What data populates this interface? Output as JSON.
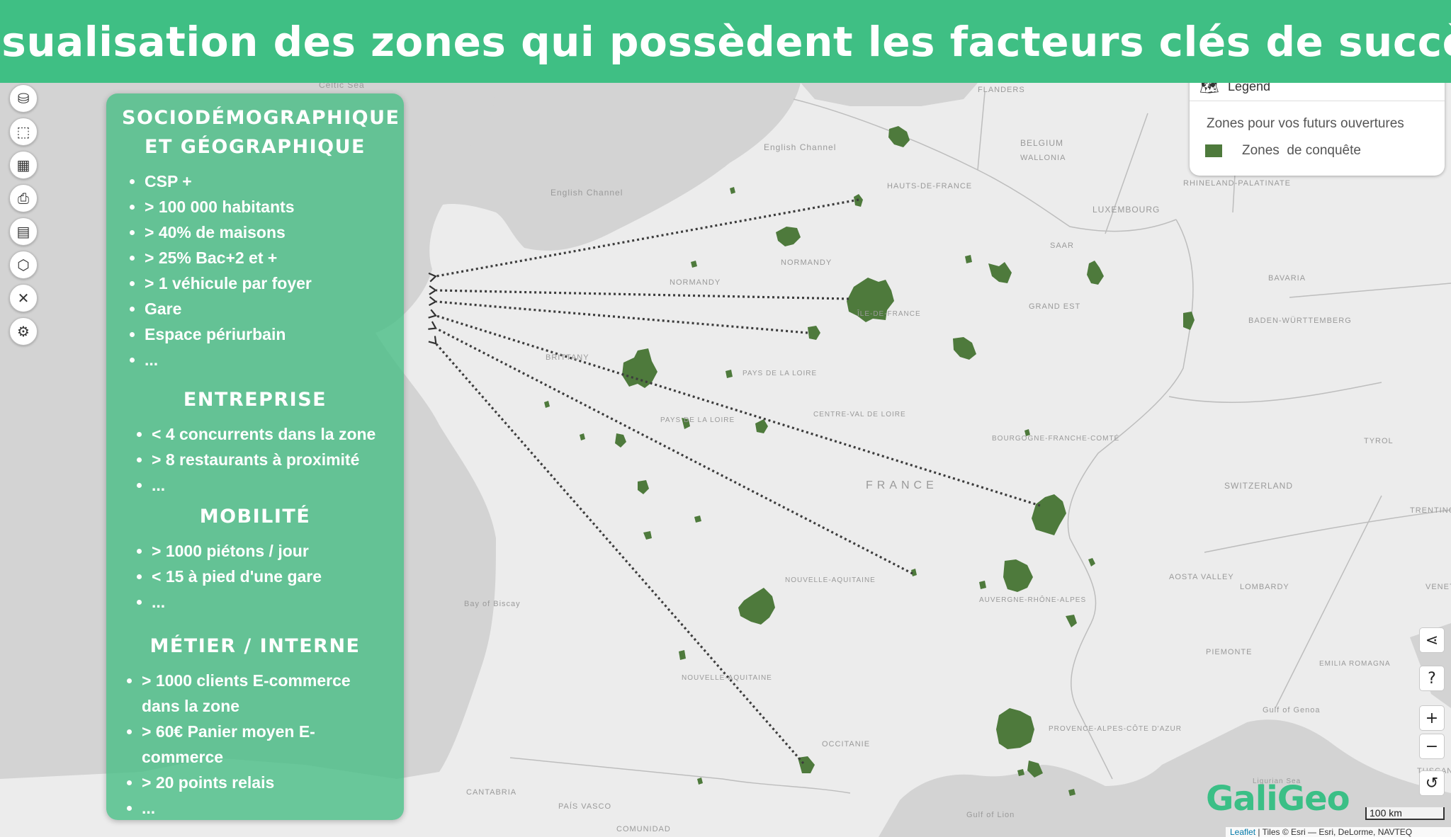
{
  "title": "Visualisation des zones qui possèdent les facteurs clés de succès",
  "toolbar": {
    "tools": [
      {
        "icon": "layers-icon"
      },
      {
        "icon": "database-globe-icon"
      },
      {
        "icon": "select-icon"
      },
      {
        "icon": "map-icon"
      },
      {
        "icon": "print-icon"
      },
      {
        "icon": "film-icon"
      },
      {
        "icon": "hexagons-icon"
      },
      {
        "icon": "tools-icon"
      },
      {
        "icon": "shield-settings-icon"
      }
    ]
  },
  "panel": {
    "sections": [
      {
        "title": "SOCIODÉMOGRAPHIQUE ET GÉOGRAPHIQUE",
        "items": [
          "CSP +",
          "> 100 000 habitants",
          "> 40% de maisons",
          "> 25% Bac+2 et +",
          "> 1 véhicule par foyer",
          "Gare",
          "Espace périurbain",
          "..."
        ]
      },
      {
        "title": "ENTREPRISE",
        "items": [
          "< 4 concurrents dans la zone",
          "> 8 restaurants à proximité",
          "..."
        ]
      },
      {
        "title": "MOBILITÉ",
        "items": [
          "> 1000 piétons / jour",
          "< 15 à pied d'une gare",
          "..."
        ]
      },
      {
        "title": "MÉTIER / INTERNE",
        "items": [
          "> 1000 clients E-commerce dans la zone",
          "> 60€ Panier moyen E-commerce",
          "> 20 points relais",
          "..."
        ]
      }
    ]
  },
  "legend": {
    "title": "Legend",
    "subtitle": "Zones pour vos futurs ouvertures",
    "items": [
      {
        "label": "Zones  de conquête",
        "color": "#4e7a3c"
      }
    ]
  },
  "controls": {
    "share": "share-icon",
    "help": "?",
    "zoom_in": "+",
    "zoom_out": "−",
    "reset": "reset-icon"
  },
  "logo": "GaliGeo",
  "scale_label": "100 km",
  "attribution": {
    "leaflet": "Leaflet",
    "rest": " | Tiles © Esri — Esri, DeLorme, NAVTEQ"
  },
  "map_labels": [
    "Celtic Sea",
    "FLANDERS",
    "BELGIUM",
    "WALLONIA",
    "English Channel",
    "English Channel",
    "HAUTS-DE-FRANCE",
    "RHINELAND-PALATINATE",
    "LUXEMBOURG",
    "SAAR",
    "NORMANDY",
    "NORMANDY",
    "BAVARIA",
    "GRAND EST",
    "ÎLE-DE-FRANCE",
    "BADEN-WÜRTTEMBERG",
    "BRITTANY",
    "PAYS DE LA LOIRE",
    "CENTRE-VAL DE LOIRE",
    "PAYS DE LA LOIRE",
    "BOURGOGNE-FRANCHE-COMTÉ",
    "TYROL",
    "FRANCE",
    "SWITZERLAND",
    "TRENTINO-ALTO ADIGE",
    "AOSTA VALLEY",
    "LOMBARDY",
    "VENETO",
    "NOUVELLE-AQUITAINE",
    "AUVERGNE-RHÔNE-ALPES",
    "Bay of Biscay",
    "PIEMONTE",
    "EMILIA ROMAGNA",
    "NOUVELLE-AQUITAINE",
    "Gulf of Genoa",
    "PROVENCE-ALPES-CÔTE D'AZUR",
    "OCCITANIE",
    "TUSCANY",
    "Ligurian Sea",
    "CANTABRIA",
    "PAÍS VASCO",
    "COMUNIDAD",
    "Gulf of Lion"
  ]
}
